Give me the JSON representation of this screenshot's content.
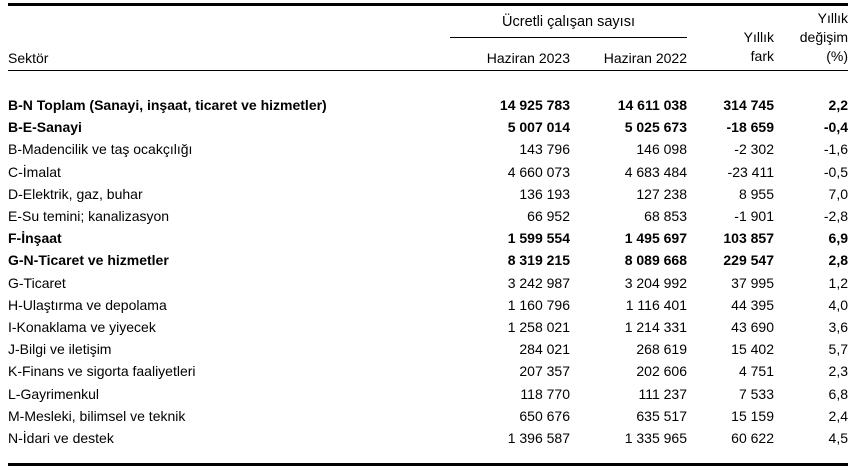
{
  "colors": {
    "background": "#ffffff",
    "text": "#000000",
    "rule": "#000000"
  },
  "table": {
    "header": {
      "sector": "Sektör",
      "group": "Ücretli çalışan sayısı",
      "col_2023": "Haziran 2023",
      "col_2022": "Haziran 2022",
      "col_fark_l1": "Yıllık",
      "col_fark_l2": "fark",
      "col_pct_l1": "Yıllık",
      "col_pct_l2": "değişim",
      "col_pct_l3": "(%)"
    },
    "rows": [
      {
        "sector": "B-N Toplam (Sanayi, inşaat, ticaret ve hizmetler)",
        "h2023": "14 925 783",
        "h2022": "14 611 038",
        "fark": "314 745",
        "pct": "2,2",
        "bold": true
      },
      {
        "sector": "B-E-Sanayi",
        "h2023": "5 007 014",
        "h2022": "5 025 673",
        "fark": "-18 659",
        "pct": "-0,4",
        "bold": true
      },
      {
        "sector": "B-Madencilik ve taş ocakçılığı",
        "h2023": "143 796",
        "h2022": "146 098",
        "fark": "-2 302",
        "pct": "-1,6",
        "bold": false
      },
      {
        "sector": "C-İmalat",
        "h2023": "4 660 073",
        "h2022": "4 683 484",
        "fark": "-23 411",
        "pct": "-0,5",
        "bold": false
      },
      {
        "sector": "D-Elektrik, gaz, buhar",
        "h2023": "136 193",
        "h2022": "127 238",
        "fark": "8 955",
        "pct": "7,0",
        "bold": false
      },
      {
        "sector": "E-Su temini; kanalizasyon",
        "h2023": "66 952",
        "h2022": "68 853",
        "fark": "-1 901",
        "pct": "-2,8",
        "bold": false
      },
      {
        "sector": "F-İnşaat",
        "h2023": "1 599 554",
        "h2022": "1 495 697",
        "fark": "103 857",
        "pct": "6,9",
        "bold": true
      },
      {
        "sector": "G-N-Ticaret ve hizmetler",
        "h2023": "8 319 215",
        "h2022": "8 089 668",
        "fark": "229 547",
        "pct": "2,8",
        "bold": true
      },
      {
        "sector": "G-Ticaret",
        "h2023": "3 242 987",
        "h2022": "3 204 992",
        "fark": "37 995",
        "pct": "1,2",
        "bold": false
      },
      {
        "sector": "H-Ulaştırma ve depolama",
        "h2023": "1 160 796",
        "h2022": "1 116 401",
        "fark": "44 395",
        "pct": "4,0",
        "bold": false
      },
      {
        "sector": "I-Konaklama ve yiyecek",
        "h2023": "1 258 021",
        "h2022": "1 214 331",
        "fark": "43 690",
        "pct": "3,6",
        "bold": false
      },
      {
        "sector": "J-Bilgi ve iletişim",
        "h2023": "284 021",
        "h2022": "268 619",
        "fark": "15 402",
        "pct": "5,7",
        "bold": false
      },
      {
        "sector": "K-Finans ve sigorta faaliyetleri",
        "h2023": "207 357",
        "h2022": "202 606",
        "fark": "4 751",
        "pct": "2,3",
        "bold": false
      },
      {
        "sector": "L-Gayrimenkul",
        "h2023": "118 770",
        "h2022": "111 237",
        "fark": "7 533",
        "pct": "6,8",
        "bold": false
      },
      {
        "sector": "M-Mesleki, bilimsel ve teknik",
        "h2023": "650 676",
        "h2022": "635 517",
        "fark": "15 159",
        "pct": "2,4",
        "bold": false
      },
      {
        "sector": "N-İdari ve destek",
        "h2023": "1 396 587",
        "h2022": "1 335 965",
        "fark": "60 622",
        "pct": "4,5",
        "bold": false
      }
    ]
  }
}
